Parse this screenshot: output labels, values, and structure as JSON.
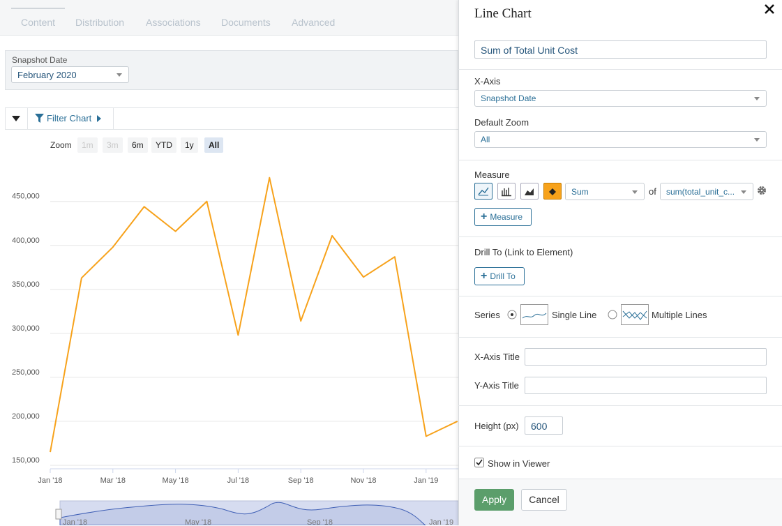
{
  "tabs": [
    "Content",
    "Distribution",
    "Associations",
    "Documents",
    "Advanced"
  ],
  "filter": {
    "label": "Snapshot Date",
    "value": "February 2020"
  },
  "toolbar": {
    "filter_chart": "Filter Chart"
  },
  "zoom": {
    "label": "Zoom",
    "options": [
      "1m",
      "3m",
      "6m",
      "YTD",
      "1y",
      "All"
    ],
    "selected": "All"
  },
  "chart_data": {
    "type": "line",
    "categories": [
      "Jan '18",
      null,
      "Mar '18",
      null,
      "May '18",
      null,
      "Jul '18",
      null,
      "Sep '18",
      null,
      "Nov '18",
      null,
      "Jan '19",
      null
    ],
    "values": [
      165000,
      363000,
      398000,
      444000,
      416000,
      450000,
      298000,
      477000,
      314000,
      411000,
      364000,
      387000,
      183000,
      200000
    ],
    "color": "#f7a21b",
    "ylim": [
      146000,
      495000
    ],
    "yticks": [
      {
        "value": 150000,
        "label": "150,000"
      },
      {
        "value": 200000,
        "label": "200,000"
      },
      {
        "value": 250000,
        "label": "250,000"
      },
      {
        "value": 300000,
        "label": "300,000"
      },
      {
        "value": 350000,
        "label": "350,000"
      },
      {
        "value": 400000,
        "label": "400,000"
      },
      {
        "value": 450000,
        "label": "450,000"
      }
    ],
    "grid": true
  },
  "navigator": {
    "labels": [
      "Jan '18",
      "May '18",
      "Sep '18",
      "Jan '19"
    ]
  },
  "panel": {
    "title": "Line Chart",
    "chart_title": "Sum of Total Unit Cost",
    "x_axis": {
      "label": "X-Axis",
      "value": "Snapshot Date"
    },
    "default_zoom": {
      "label": "Default Zoom",
      "value": "All"
    },
    "measure": {
      "label": "Measure",
      "aggregation": "Sum",
      "of": "of",
      "field": "sum(total_unit_c...",
      "add": "Measure"
    },
    "drill": {
      "label": "Drill To (Link to Element)",
      "button": "Drill To"
    },
    "series": {
      "label": "Series",
      "single": "Single Line",
      "multiple": "Multiple Lines"
    },
    "x_axis_title": "X-Axis Title",
    "y_axis_title": "Y-Axis Title",
    "height": {
      "label": "Height (px)",
      "value": "600"
    },
    "show_in_viewer": "Show in Viewer",
    "apply": "Apply",
    "cancel": "Cancel"
  }
}
